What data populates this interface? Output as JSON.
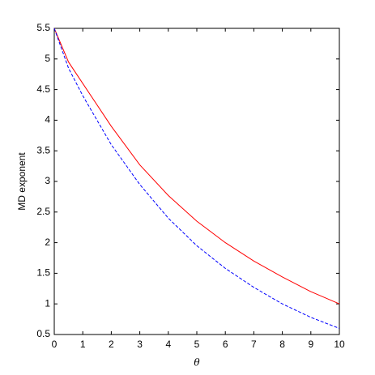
{
  "chart_data": {
    "type": "line",
    "xlabel": "θ",
    "ylabel": "MD exponent",
    "x": [
      0,
      0.5,
      1,
      2,
      3,
      4,
      5,
      6,
      7,
      8,
      9,
      10
    ],
    "series": [
      {
        "color": "#ff0000",
        "dash": "solid",
        "values": [
          5.5,
          4.95,
          4.6,
          3.9,
          3.27,
          2.77,
          2.35,
          2.0,
          1.7,
          1.44,
          1.2,
          1.0
        ]
      },
      {
        "color": "#0000ff",
        "dash": "dashed",
        "values": [
          5.5,
          4.85,
          4.4,
          3.6,
          2.95,
          2.4,
          1.95,
          1.58,
          1.27,
          1.0,
          0.78,
          0.6
        ]
      }
    ],
    "xlim": [
      0,
      10
    ],
    "ylim": [
      0.5,
      5.5
    ],
    "xticks": [
      0,
      1,
      2,
      3,
      4,
      5,
      6,
      7,
      8,
      9,
      10
    ],
    "yticks": [
      0.5,
      1,
      1.5,
      2,
      2.5,
      3,
      3.5,
      4,
      4.5,
      5,
      5.5
    ],
    "grid": false
  }
}
